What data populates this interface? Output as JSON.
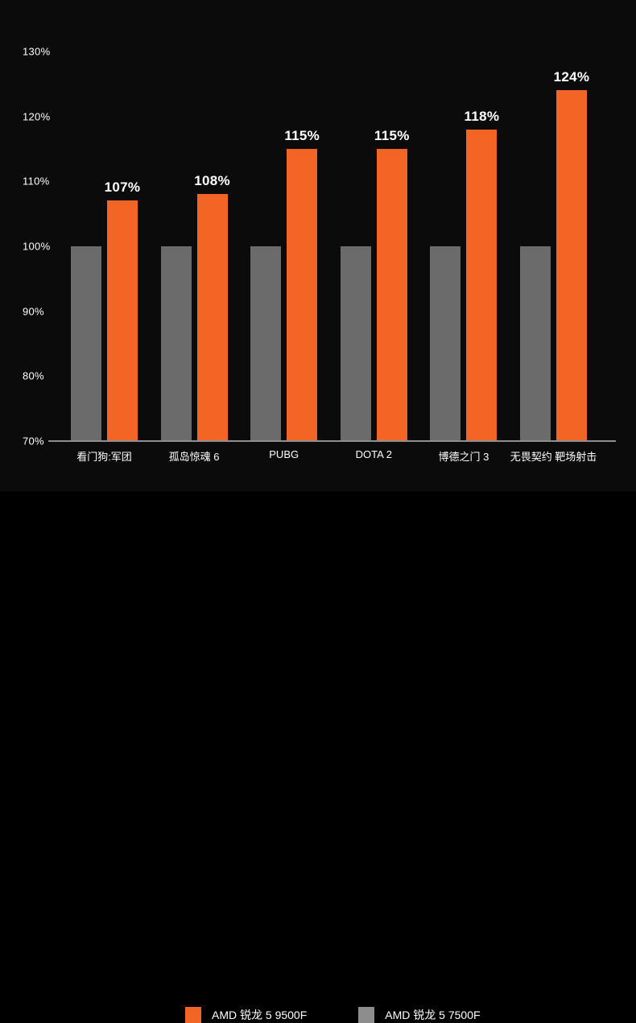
{
  "page": {
    "background": "#000000",
    "chart_panel_background": "#0b0b0b",
    "footer_background": "#000000",
    "axis_line_color": "#8f8f8f",
    "text_color": "#ffffff"
  },
  "chart_data": {
    "type": "bar",
    "title": "",
    "xlabel": "",
    "ylabel": "",
    "unit": "%",
    "grid": false,
    "legend_position": "bottom",
    "ylim": [
      70,
      130
    ],
    "baseline_value": 70,
    "yticks": [
      {
        "value": 130,
        "label": "130%"
      },
      {
        "value": 120,
        "label": "120%"
      },
      {
        "value": 110,
        "label": "110%"
      },
      {
        "value": 100,
        "label": "100%"
      },
      {
        "value": 90,
        "label": "90%"
      },
      {
        "value": 80,
        "label": "80%"
      },
      {
        "value": 70,
        "label": "70%"
      }
    ],
    "categories": [
      "看门狗:军团",
      "孤岛惊魂 6",
      "PUBG",
      "DOTA 2",
      "博德之门 3",
      "无畏契约 靶场射击"
    ],
    "series": [
      {
        "name": "AMD 锐龙 5 7500F",
        "color": "#6b6b6b",
        "values": [
          100,
          100,
          100,
          100,
          100,
          100
        ],
        "value_labels": [
          "",
          "",
          "",
          "",
          "",
          ""
        ]
      },
      {
        "name": "AMD 锐龙 5 9500F",
        "color": "#f26524",
        "values": [
          107,
          108,
          115,
          115,
          118,
          124
        ],
        "value_labels": [
          "107%",
          "108%",
          "115%",
          "115%",
          "118%",
          "124%"
        ]
      }
    ]
  },
  "legend": {
    "items": [
      {
        "label": "AMD 锐龙 5 9500F",
        "color": "#f26524"
      },
      {
        "label": "AMD 锐龙 5 7500F",
        "color": "#8d8d8d"
      }
    ]
  }
}
